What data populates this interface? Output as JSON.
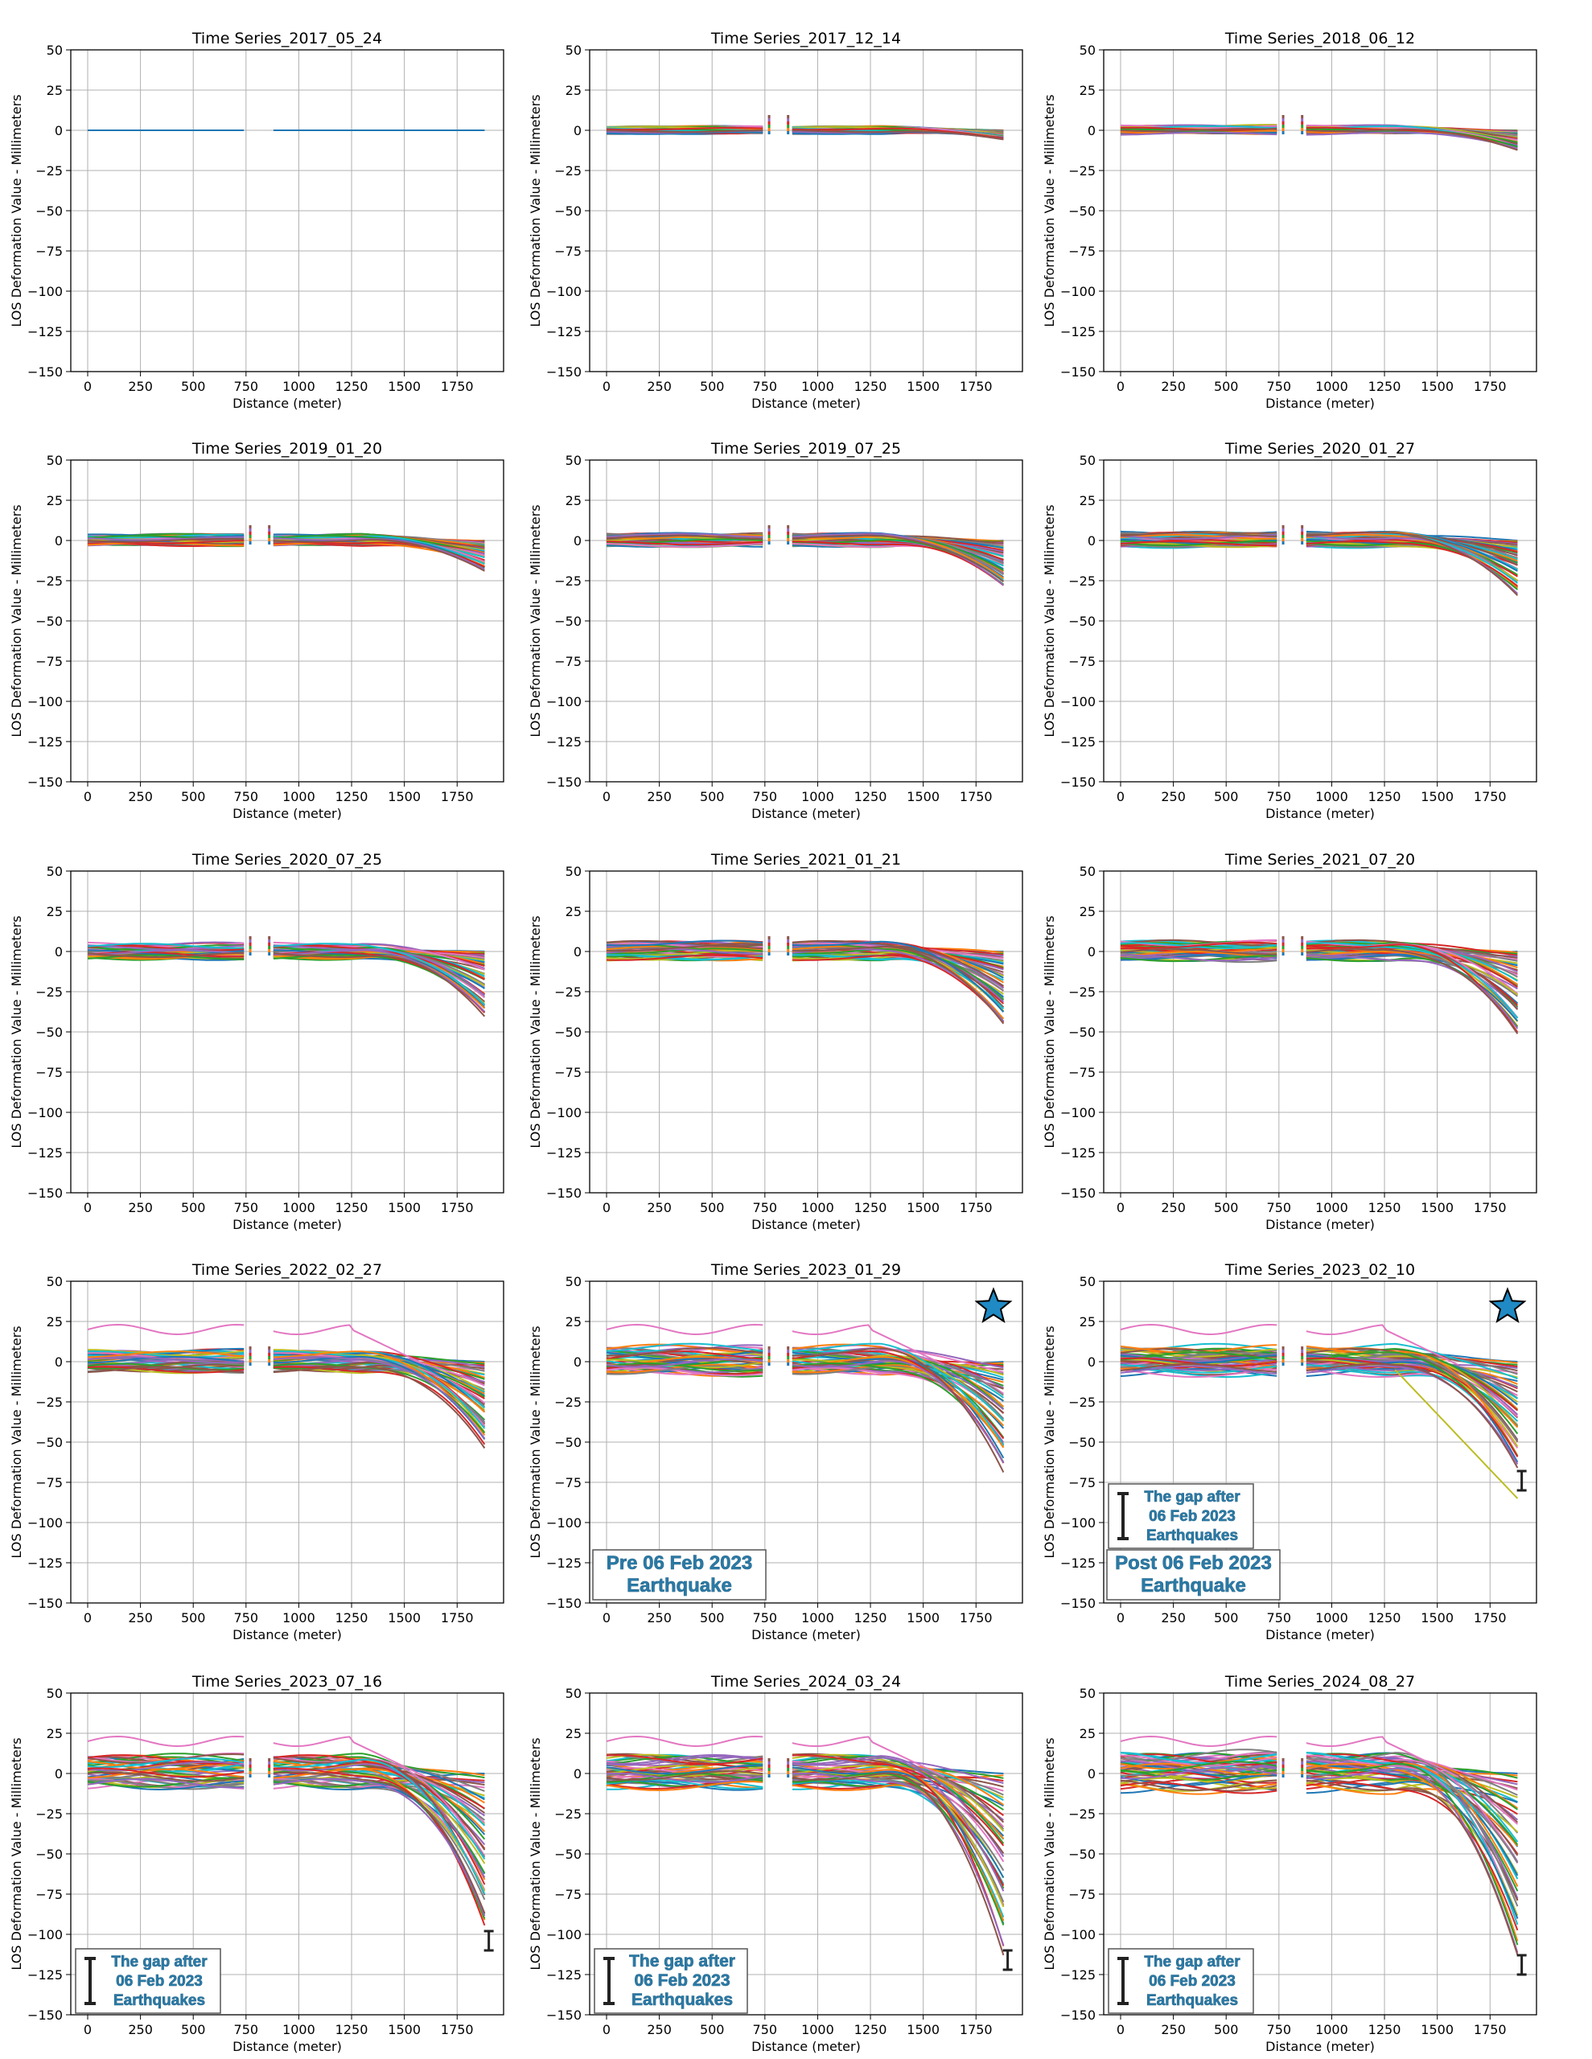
{
  "figure": {
    "ylabel": "LOS Deformation Value - Millimeters",
    "xlabel": "Distance (meter)",
    "xticks": [
      0,
      250,
      500,
      750,
      1000,
      1250,
      1500,
      1750
    ],
    "yticks": [
      50,
      25,
      0,
      -25,
      -50,
      -75,
      -100,
      -125,
      -150
    ],
    "xlim": [
      -80,
      1970
    ],
    "ylim": [
      -150,
      50
    ],
    "grid": true
  },
  "chart_data": [
    {
      "type": "line",
      "title": "Time Series_2017_05_24",
      "xlim": [
        -80,
        1970
      ],
      "ylim": [
        -150,
        50
      ],
      "profile": {
        "max_drop": 0,
        "left_spread": 0,
        "high_trace": false,
        "outlier_tail": false,
        "gap_markers": false
      }
    },
    {
      "type": "line",
      "title": "Time Series_2017_12_14",
      "xlim": [
        -80,
        1970
      ],
      "ylim": [
        -150,
        50
      ],
      "profile": {
        "max_drop": -6,
        "left_spread": 4,
        "high_trace": false,
        "outlier_tail": false,
        "gap_markers": false
      }
    },
    {
      "type": "line",
      "title": "Time Series_2018_06_12",
      "xlim": [
        -80,
        1970
      ],
      "ylim": [
        -150,
        50
      ],
      "profile": {
        "max_drop": -13,
        "left_spread": 5,
        "high_trace": false,
        "outlier_tail": false,
        "gap_markers": false
      }
    },
    {
      "type": "line",
      "title": "Time Series_2019_01_20",
      "xlim": [
        -80,
        1970
      ],
      "ylim": [
        -150,
        50
      ],
      "profile": {
        "max_drop": -20,
        "left_spread": 6,
        "high_trace": false,
        "outlier_tail": false,
        "gap_markers": false
      }
    },
    {
      "type": "line",
      "title": "Time Series_2019_07_25",
      "xlim": [
        -80,
        1970
      ],
      "ylim": [
        -150,
        50
      ],
      "profile": {
        "max_drop": -30,
        "left_spread": 7,
        "high_trace": false,
        "outlier_tail": false,
        "gap_markers": false
      }
    },
    {
      "type": "line",
      "title": "Time Series_2020_01_27",
      "xlim": [
        -80,
        1970
      ],
      "ylim": [
        -150,
        50
      ],
      "profile": {
        "max_drop": -35,
        "left_spread": 8,
        "high_trace": false,
        "outlier_tail": false,
        "gap_markers": false
      }
    },
    {
      "type": "line",
      "title": "Time Series_2020_07_25",
      "xlim": [
        -80,
        1970
      ],
      "ylim": [
        -150,
        50
      ],
      "profile": {
        "max_drop": -43,
        "left_spread": 9,
        "high_trace": false,
        "outlier_tail": false,
        "gap_markers": false
      }
    },
    {
      "type": "line",
      "title": "Time Series_2021_01_21",
      "xlim": [
        -80,
        1970
      ],
      "ylim": [
        -150,
        50
      ],
      "profile": {
        "max_drop": -49,
        "left_spread": 10,
        "high_trace": false,
        "outlier_tail": false,
        "gap_markers": false
      }
    },
    {
      "type": "line",
      "title": "Time Series_2021_07_20",
      "xlim": [
        -80,
        1970
      ],
      "ylim": [
        -150,
        50
      ],
      "profile": {
        "max_drop": -54,
        "left_spread": 11,
        "high_trace": false,
        "outlier_tail": false,
        "gap_markers": false
      }
    },
    {
      "type": "line",
      "title": "Time Series_2022_02_27",
      "xlim": [
        -80,
        1970
      ],
      "ylim": [
        -150,
        50
      ],
      "profile": {
        "max_drop": -56,
        "left_spread": 12,
        "high_trace": true,
        "outlier_tail": false,
        "gap_markers": false
      }
    },
    {
      "type": "line",
      "title": "Time Series_2023_01_29",
      "xlim": [
        -80,
        1970
      ],
      "ylim": [
        -150,
        50
      ],
      "profile": {
        "max_drop": -70,
        "left_spread": 16,
        "high_trace": true,
        "outlier_tail": false,
        "gap_markers": false
      },
      "annotations": {
        "text_lines": [
          "Pre 06 Feb 2023",
          "Earthquake"
        ],
        "star": true,
        "gap_label": false
      }
    },
    {
      "type": "line",
      "title": "Time Series_2023_02_10",
      "xlim": [
        -80,
        1970
      ],
      "ylim": [
        -150,
        50
      ],
      "profile": {
        "max_drop": -72,
        "left_spread": 16,
        "high_trace": true,
        "outlier_tail": true,
        "gap_markers": true
      },
      "annotations": {
        "text_lines": [
          "Post 06 Feb 2023",
          "Earthquake"
        ],
        "star": true,
        "gap_label": true,
        "gap_lines": [
          "The gap after",
          "06 Feb 2023",
          "Earthquakes"
        ]
      }
    },
    {
      "type": "line",
      "title": "Time Series_2023_07_16",
      "xlim": [
        -80,
        1970
      ],
      "ylim": [
        -150,
        50
      ],
      "profile": {
        "max_drop": -102,
        "left_spread": 18,
        "high_trace": true,
        "outlier_tail": false,
        "gap_markers": true
      },
      "annotations": {
        "text_lines": [],
        "star": false,
        "gap_label": true,
        "gap_lines": [
          "The gap after",
          "06 Feb 2023",
          "Earthquakes"
        ]
      }
    },
    {
      "type": "line",
      "title": "Time Series_2024_03_24",
      "xlim": [
        -80,
        1970
      ],
      "ylim": [
        -150,
        50
      ],
      "profile": {
        "max_drop": -114,
        "left_spread": 18,
        "high_trace": true,
        "outlier_tail": false,
        "gap_markers": true
      },
      "annotations": {
        "text_lines": [],
        "star": false,
        "gap_label": true,
        "gap_lines": [
          "The gap after",
          "06 Feb 2023",
          "Earthquakes"
        ]
      }
    },
    {
      "type": "line",
      "title": "Time Series_2024_08_27",
      "xlim": [
        -80,
        1970
      ],
      "ylim": [
        -150,
        50
      ],
      "profile": {
        "max_drop": -117,
        "left_spread": 22,
        "high_trace": true,
        "outlier_tail": false,
        "gap_markers": true
      },
      "annotations": {
        "text_lines": [],
        "star": false,
        "gap_label": true,
        "gap_lines": [
          "The gap after",
          "06 Feb 2023",
          "Earthquakes"
        ]
      }
    }
  ]
}
